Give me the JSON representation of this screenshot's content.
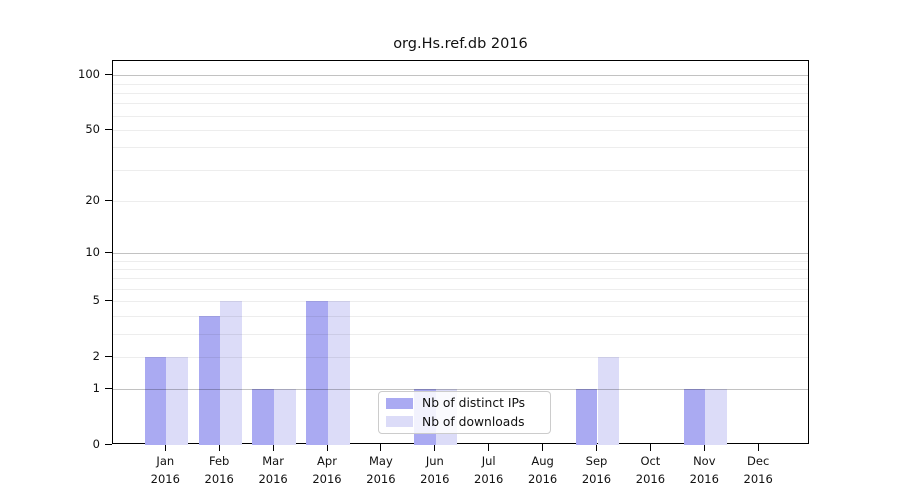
{
  "chart_data": {
    "type": "bar",
    "title": "org.Hs.ref.db 2016",
    "categories": [
      "Jan",
      "Feb",
      "Mar",
      "Apr",
      "May",
      "Jun",
      "Jul",
      "Aug",
      "Sep",
      "Oct",
      "Nov",
      "Dec"
    ],
    "year": "2016",
    "series": [
      {
        "name": "Nb of distinct IPs",
        "color": "#aaaaf2",
        "values": [
          2,
          4,
          1,
          5,
          0,
          1,
          0,
          0,
          1,
          0,
          1,
          0
        ]
      },
      {
        "name": "Nb of downloads",
        "color": "#dcdcf8",
        "values": [
          2,
          5,
          1,
          5,
          0,
          1,
          0,
          0,
          2,
          0,
          1,
          0
        ]
      }
    ],
    "xlabel": "",
    "ylabel": "",
    "yticks": [
      0,
      1,
      2,
      5,
      10,
      20,
      50,
      100
    ],
    "y_scale": "log10(1+x)",
    "ylim": [
      0,
      120
    ],
    "grid": {
      "on": true,
      "minor_values": [
        2,
        3,
        4,
        5,
        6,
        7,
        8,
        9,
        20,
        30,
        40,
        50,
        60,
        70,
        80,
        90
      ],
      "major_values": [
        1,
        10,
        100
      ]
    },
    "legend": {
      "position": "bottom-center"
    }
  }
}
